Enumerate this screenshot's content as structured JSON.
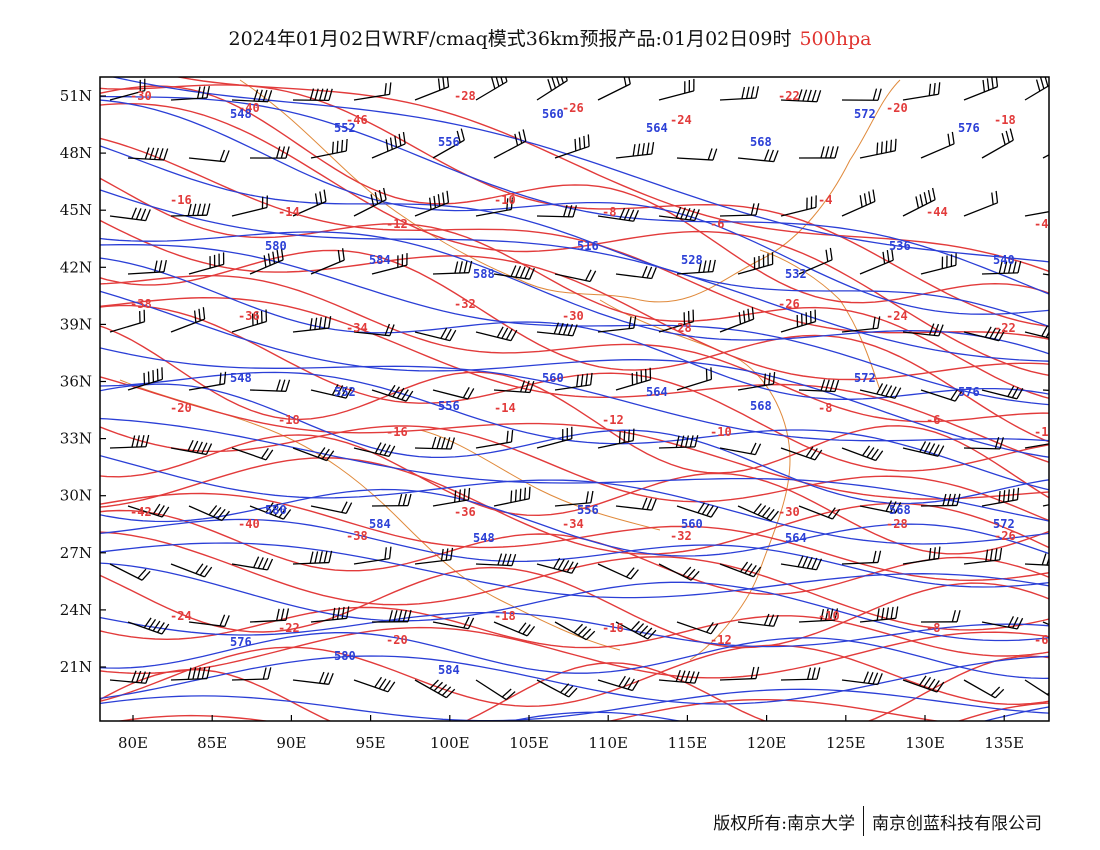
{
  "title": {
    "main": "2024年01月02日WRF/cmaq模式36km预报产品:01月02日09时",
    "level": "500hpa"
  },
  "footer": {
    "copyright": "版权所有:南京大学",
    "company": "南京创蓝科技有限公司"
  },
  "axes": {
    "lon_labels": [
      "80E",
      "85E",
      "90E",
      "95E",
      "100E",
      "105E",
      "110E",
      "115E",
      "120E",
      "125E",
      "130E",
      "135E"
    ],
    "lat_labels": [
      "51N",
      "48N",
      "45N",
      "42N",
      "39N",
      "36N",
      "33N",
      "30N",
      "27N",
      "24N",
      "21N"
    ]
  },
  "colors": {
    "height_contour": "#2b3fd6",
    "temperature_contour": "#e23b3b",
    "wind_barb": "#000000",
    "coastline": "#e08a3c"
  },
  "temperature_labels": [
    "-30",
    "-40",
    "-46",
    "-28",
    "-26",
    "-24",
    "-22",
    "-20",
    "-18",
    "-16",
    "-14",
    "-12",
    "-10",
    "-8",
    "-6",
    "-4",
    "-44",
    "-42",
    "-38",
    "-36",
    "-34",
    "-32",
    "-30",
    "-28",
    "-26",
    "-24",
    "-22",
    "-20",
    "-18",
    "-16",
    "-14",
    "-12",
    "-10",
    "-8",
    "-6",
    "-16",
    "-42",
    "-40",
    "-38",
    "-36",
    "-34",
    "-32",
    "-30",
    "-28",
    "-26",
    "-24",
    "-22",
    "-20",
    "-18",
    "-16",
    "-12",
    "-10",
    "-8",
    "-6"
  ],
  "height_labels": [
    "548",
    "552",
    "556",
    "560",
    "564",
    "568",
    "572",
    "576",
    "580",
    "584",
    "588",
    "516",
    "528",
    "532",
    "536",
    "540",
    "548",
    "552",
    "556",
    "560",
    "564",
    "568",
    "572",
    "576",
    "580",
    "584",
    "548",
    "556",
    "560",
    "564",
    "568",
    "572",
    "576",
    "580",
    "584"
  ]
}
